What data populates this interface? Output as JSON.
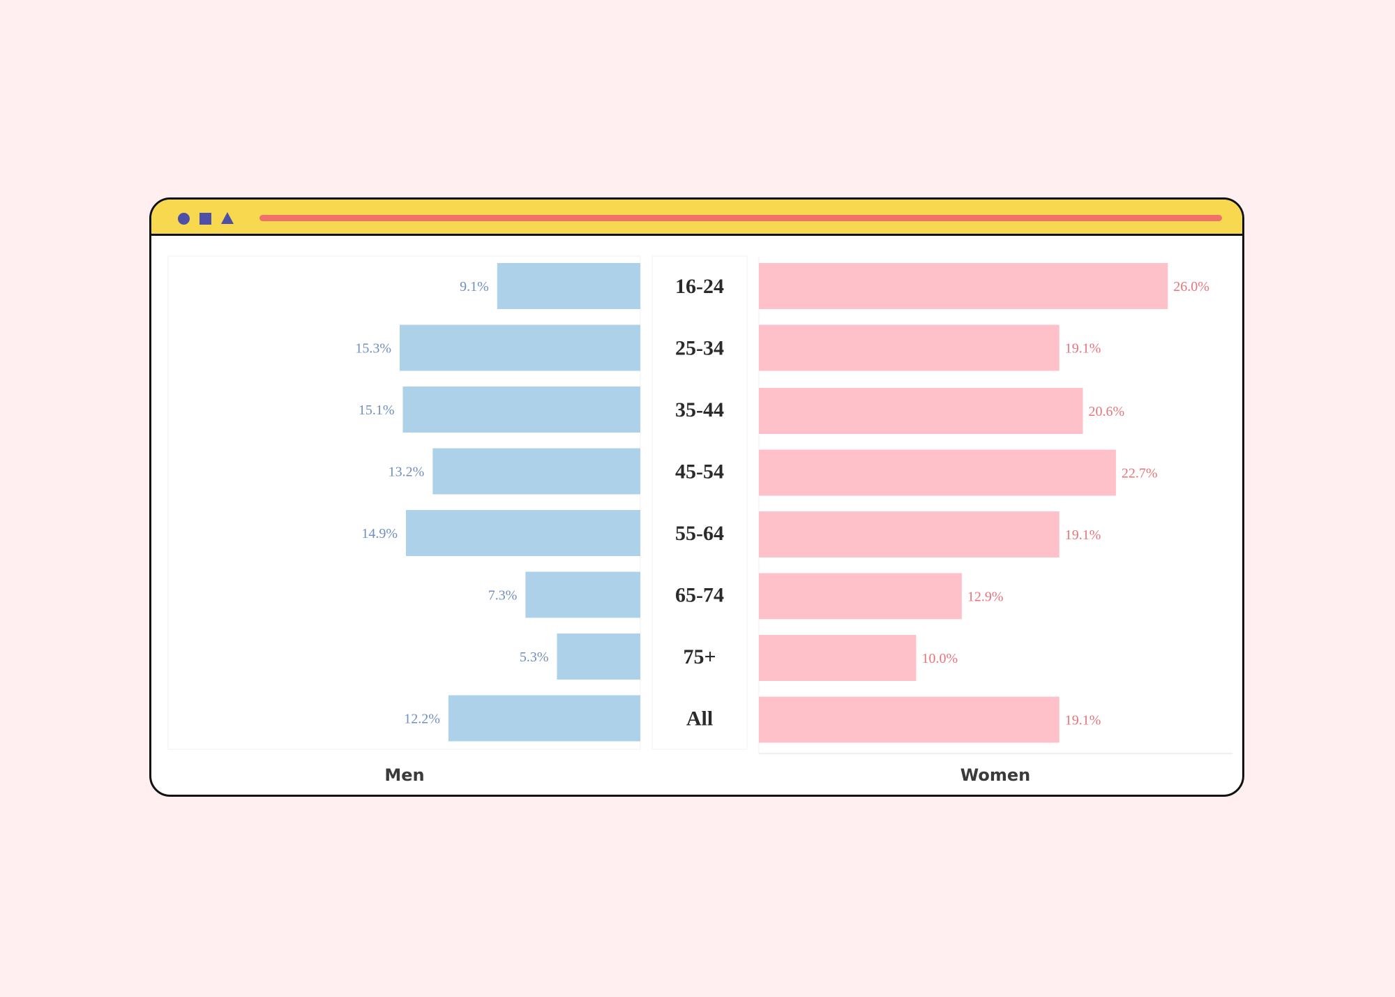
{
  "colors": {
    "page_background": "#FFEFF1",
    "window_border": "#111111",
    "titlebar": "#F7D84E",
    "titlebar_icons": "#4E4FA6",
    "address_bar": "#F0716A",
    "men_bar": "#AED1EA",
    "men_label": "#6F8FBF",
    "women_bar": "#FFC1C9",
    "women_label": "#E9737B",
    "category_text": "#2A2A2A"
  },
  "window": {
    "controls": [
      "circle-icon",
      "square-icon",
      "triangle-icon"
    ]
  },
  "chart_data": {
    "type": "bar",
    "orientation": "horizontal",
    "layout": "back-to-back",
    "categories": [
      "16-24",
      "25-34",
      "35-44",
      "45-54",
      "55-64",
      "65-74",
      "75+",
      "All"
    ],
    "series": [
      {
        "name": "Men",
        "values": [
          9.1,
          15.3,
          15.1,
          13.2,
          14.9,
          7.3,
          5.3,
          12.2
        ],
        "labels": [
          "9.1%",
          "15.3%",
          "15.1%",
          "13.2%",
          "14.9%",
          "7.3%",
          "5.3%",
          "12.2%"
        ],
        "color": "#AED1EA",
        "direction": "left"
      },
      {
        "name": "Women",
        "values": [
          26.0,
          19.1,
          20.6,
          22.7,
          19.1,
          12.9,
          10.0,
          19.1
        ],
        "labels": [
          "26.0%",
          "19.1%",
          "20.6%",
          "22.7%",
          "19.1%",
          "12.9%",
          "10.0%",
          "19.1%"
        ],
        "color": "#FFC1C9",
        "direction": "right"
      }
    ],
    "unit": "%",
    "grid": false
  }
}
